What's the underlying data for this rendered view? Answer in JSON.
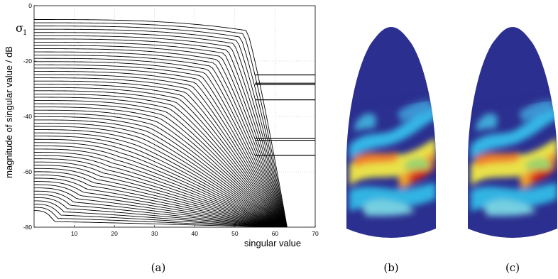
{
  "chart_data": [
    {
      "type": "line",
      "caption": "(a)",
      "xlabel": "singular value",
      "ylabel": "magnitude of singular value / dB",
      "xlim": [
        0,
        70
      ],
      "ylim": [
        -80,
        0
      ],
      "xticks": [
        10,
        20,
        30,
        40,
        50,
        60,
        70
      ],
      "yticks": [
        0,
        -20,
        -40,
        -60,
        -80
      ],
      "grid": true,
      "annotation": "σ",
      "annotation_sub": "1",
      "curve_family": {
        "count": 60,
        "start_levels": [
          -5,
          -74
        ],
        "knee_x": 53,
        "end_x": 63,
        "end_level": -80
      },
      "horizontal_levels": [
        -25,
        -28,
        -28.5,
        -34,
        -48,
        -48.6,
        -54
      ]
    },
    {
      "type": "heatmap",
      "caption": "(b)"
    },
    {
      "type": "heatmap",
      "caption": "(c)"
    }
  ]
}
